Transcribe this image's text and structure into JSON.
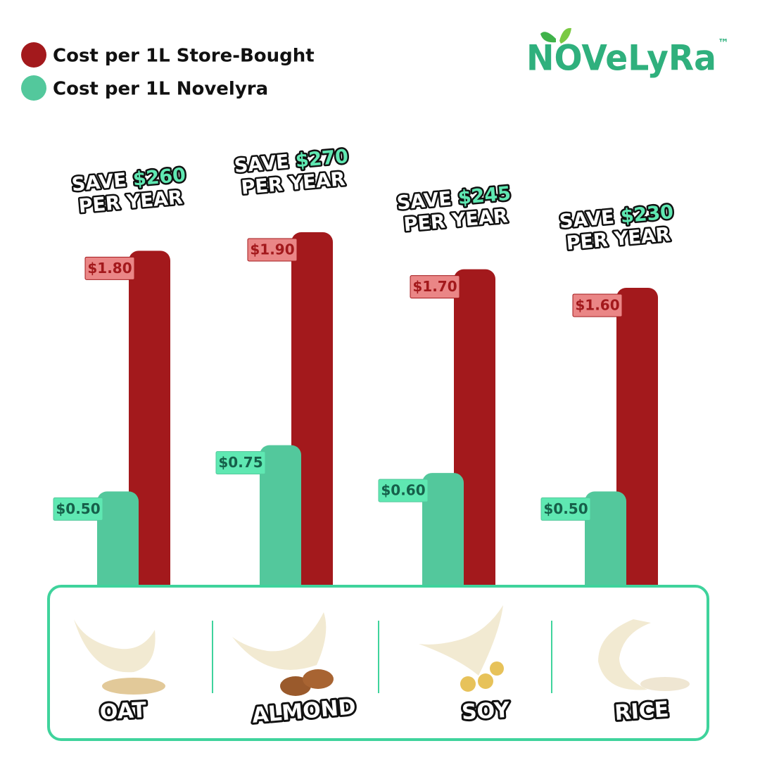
{
  "chart_data": {
    "type": "bar",
    "logo": "NOVeLyRa",
    "logo_mark": "™",
    "categories": [
      "OAT",
      "ALMOND",
      "SOY",
      "RICE"
    ],
    "series": [
      {
        "name": "Cost per 1L Store-Bought",
        "color": "#a3191c",
        "label_color": "#ea8686",
        "values": [
          1.8,
          1.9,
          1.7,
          1.6
        ],
        "value_labels": [
          "$1.80",
          "$1.90",
          "$1.70",
          "$1.60"
        ]
      },
      {
        "name": "Cost per 1L Novelyra",
        "color": "#53c89c",
        "label_color": "#5fe8b2",
        "values": [
          0.5,
          0.75,
          0.6,
          0.5
        ],
        "value_labels": [
          "$0.50",
          "$0.75",
          "$0.60",
          "$0.50"
        ]
      }
    ],
    "annotations": [
      {
        "save": "SAVE",
        "amount": "$260",
        "per_year": "PER YEAR"
      },
      {
        "save": "SAVE",
        "amount": "$270",
        "per_year": "PER YEAR"
      },
      {
        "save": "SAVE",
        "amount": "$245",
        "per_year": "PER YEAR"
      },
      {
        "save": "SAVE",
        "amount": "$230",
        "per_year": "PER YEAR"
      }
    ]
  }
}
